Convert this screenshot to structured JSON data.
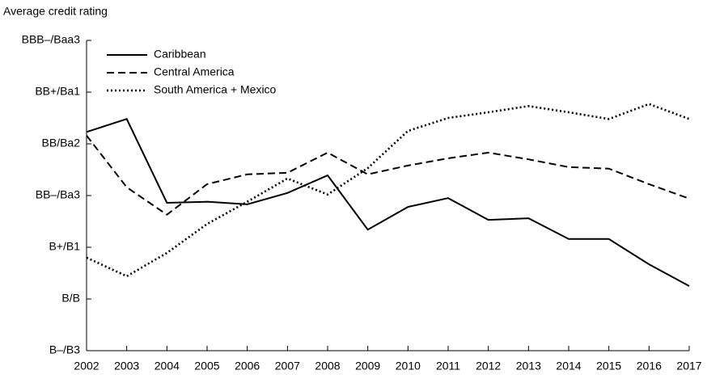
{
  "chart_data": {
    "type": "line",
    "title": "Average credit rating",
    "x": [
      2002,
      2003,
      2004,
      2005,
      2006,
      2007,
      2008,
      2009,
      2010,
      2011,
      2012,
      2013,
      2014,
      2015,
      2016,
      2017
    ],
    "xlim": [
      2002,
      2017
    ],
    "xticks": [
      2002,
      2003,
      2004,
      2005,
      2006,
      2007,
      2008,
      2009,
      2010,
      2011,
      2012,
      2013,
      2014,
      2015,
      2016,
      2017
    ],
    "ylim": [
      0,
      6
    ],
    "yticks": [
      {
        "value": 0,
        "label": "B–/B3"
      },
      {
        "value": 1,
        "label": "B/B"
      },
      {
        "value": 2,
        "label": "B+/B1"
      },
      {
        "value": 3,
        "label": "BB–/Ba3"
      },
      {
        "value": 4,
        "label": "BB/Ba2"
      },
      {
        "value": 5,
        "label": "BB+/Ba1"
      },
      {
        "value": 6,
        "label": "BBB–/Baa3"
      }
    ],
    "legend": "upper left",
    "series": [
      {
        "name": "Caribbean",
        "color": "#000000",
        "dash": "solid",
        "values": [
          4.23,
          4.48,
          2.86,
          2.88,
          2.83,
          3.05,
          3.39,
          2.34,
          2.78,
          2.95,
          2.53,
          2.56,
          2.16,
          2.16,
          1.67,
          1.25
        ]
      },
      {
        "name": "Central America",
        "color": "#000000",
        "dash": "dashed",
        "values": [
          4.16,
          3.16,
          2.63,
          3.22,
          3.41,
          3.44,
          3.83,
          3.41,
          3.58,
          3.72,
          3.83,
          3.7,
          3.55,
          3.52,
          3.22,
          2.94
        ]
      },
      {
        "name": "South America + Mexico",
        "color": "#000000",
        "dash": "dotted",
        "values": [
          1.8,
          1.44,
          1.89,
          2.45,
          2.88,
          3.33,
          3.02,
          3.53,
          4.25,
          4.5,
          4.61,
          4.73,
          4.61,
          4.48,
          4.77,
          4.48
        ]
      }
    ]
  }
}
